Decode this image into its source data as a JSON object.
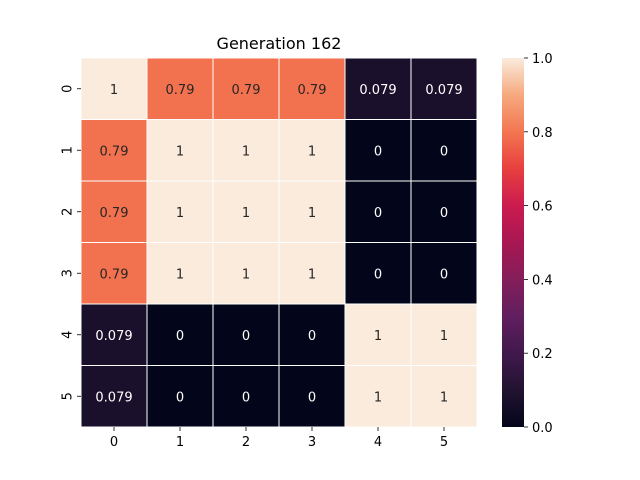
{
  "chart_data": {
    "type": "heatmap",
    "title": "Generation 162",
    "xlabel": "",
    "ylabel": "",
    "x_tick_labels": [
      "0",
      "1",
      "2",
      "3",
      "4",
      "5"
    ],
    "y_tick_labels": [
      "0",
      "1",
      "2",
      "3",
      "4",
      "5"
    ],
    "values": [
      [
        1,
        0.79,
        0.79,
        0.79,
        0.079,
        0.079
      ],
      [
        0.79,
        1,
        1,
        1,
        0,
        0
      ],
      [
        0.79,
        1,
        1,
        1,
        0,
        0
      ],
      [
        0.79,
        1,
        1,
        1,
        0,
        0
      ],
      [
        0.079,
        0,
        0,
        0,
        1,
        1
      ],
      [
        0.079,
        0,
        0,
        0,
        1,
        1
      ]
    ],
    "cell_labels": [
      [
        "1",
        "0.79",
        "0.79",
        "0.79",
        "0.079",
        "0.079"
      ],
      [
        "0.79",
        "1",
        "1",
        "1",
        "0",
        "0"
      ],
      [
        "0.79",
        "1",
        "1",
        "1",
        "0",
        "0"
      ],
      [
        "0.79",
        "1",
        "1",
        "1",
        "0",
        "0"
      ],
      [
        "0.079",
        "0",
        "0",
        "0",
        "1",
        "1"
      ],
      [
        "0.079",
        "0",
        "0",
        "0",
        "1",
        "1"
      ]
    ],
    "vmin": 0.0,
    "vmax": 1.0,
    "colormap": "rocket",
    "colorbar": {
      "ticks": [
        0.0,
        0.2,
        0.4,
        0.6,
        0.8,
        1.0
      ],
      "tick_labels": [
        "0.0",
        "0.2",
        "0.4",
        "0.6",
        "0.8",
        "1.0"
      ]
    },
    "grid": false,
    "cell_border_color": "#ffffff"
  }
}
